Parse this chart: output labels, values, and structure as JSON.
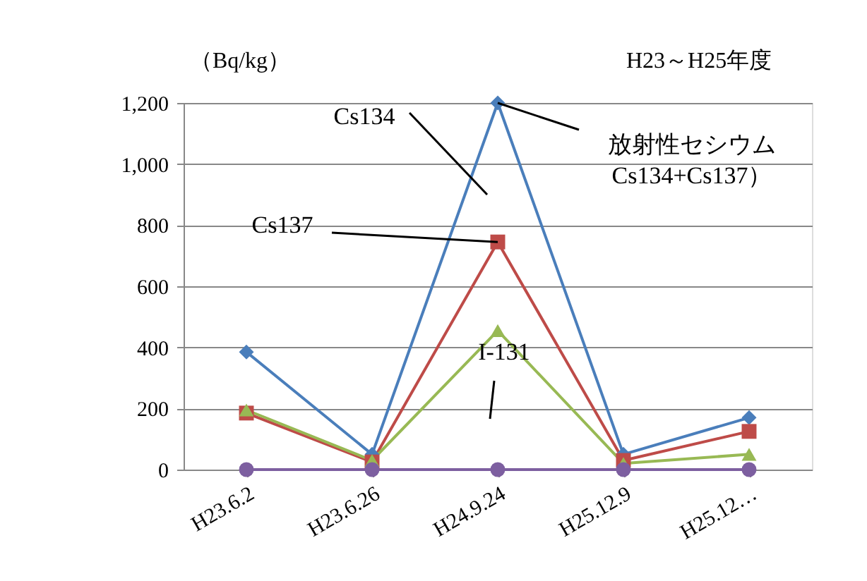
{
  "chart_data": {
    "type": "line",
    "title": "H23～H25年度",
    "ylabel": "（Bq/kg）",
    "categories": [
      "H23.6.2",
      "H23.6.26",
      "H24.9.24",
      "H25.12.9",
      "H25.12…"
    ],
    "series": [
      {
        "color": "#4a7ebb",
        "marker": "diamond",
        "values": [
          385,
          50,
          1200,
          50,
          170
        ]
      },
      {
        "color": "#be4b48",
        "marker": "square",
        "values": [
          185,
          25,
          745,
          30,
          125
        ]
      },
      {
        "color": "#98b954",
        "marker": "triangle",
        "values": [
          195,
          30,
          455,
          20,
          50
        ]
      },
      {
        "color": "#7d5fa0",
        "marker": "circle",
        "values": [
          0,
          0,
          0,
          0,
          0
        ]
      }
    ],
    "annotations": [
      "Cs134",
      {
        "text": "Cs137",
        "x": "H24.9.24",
        "y": 745
      },
      {
        "text": "放射性セシウム\nCs134+Cs137）",
        "x": "H24.9.24",
        "y": 1200
      },
      "I-131"
    ],
    "ylim": [
      0,
      1200
    ],
    "yticks": [
      0,
      200,
      400,
      600,
      800,
      {
        "value": 1000,
        "label": "1,000"
      },
      {
        "value": 1200,
        "label": "1,200"
      }
    ],
    "grid": "y",
    "legend": false,
    "line_style": "solid"
  }
}
